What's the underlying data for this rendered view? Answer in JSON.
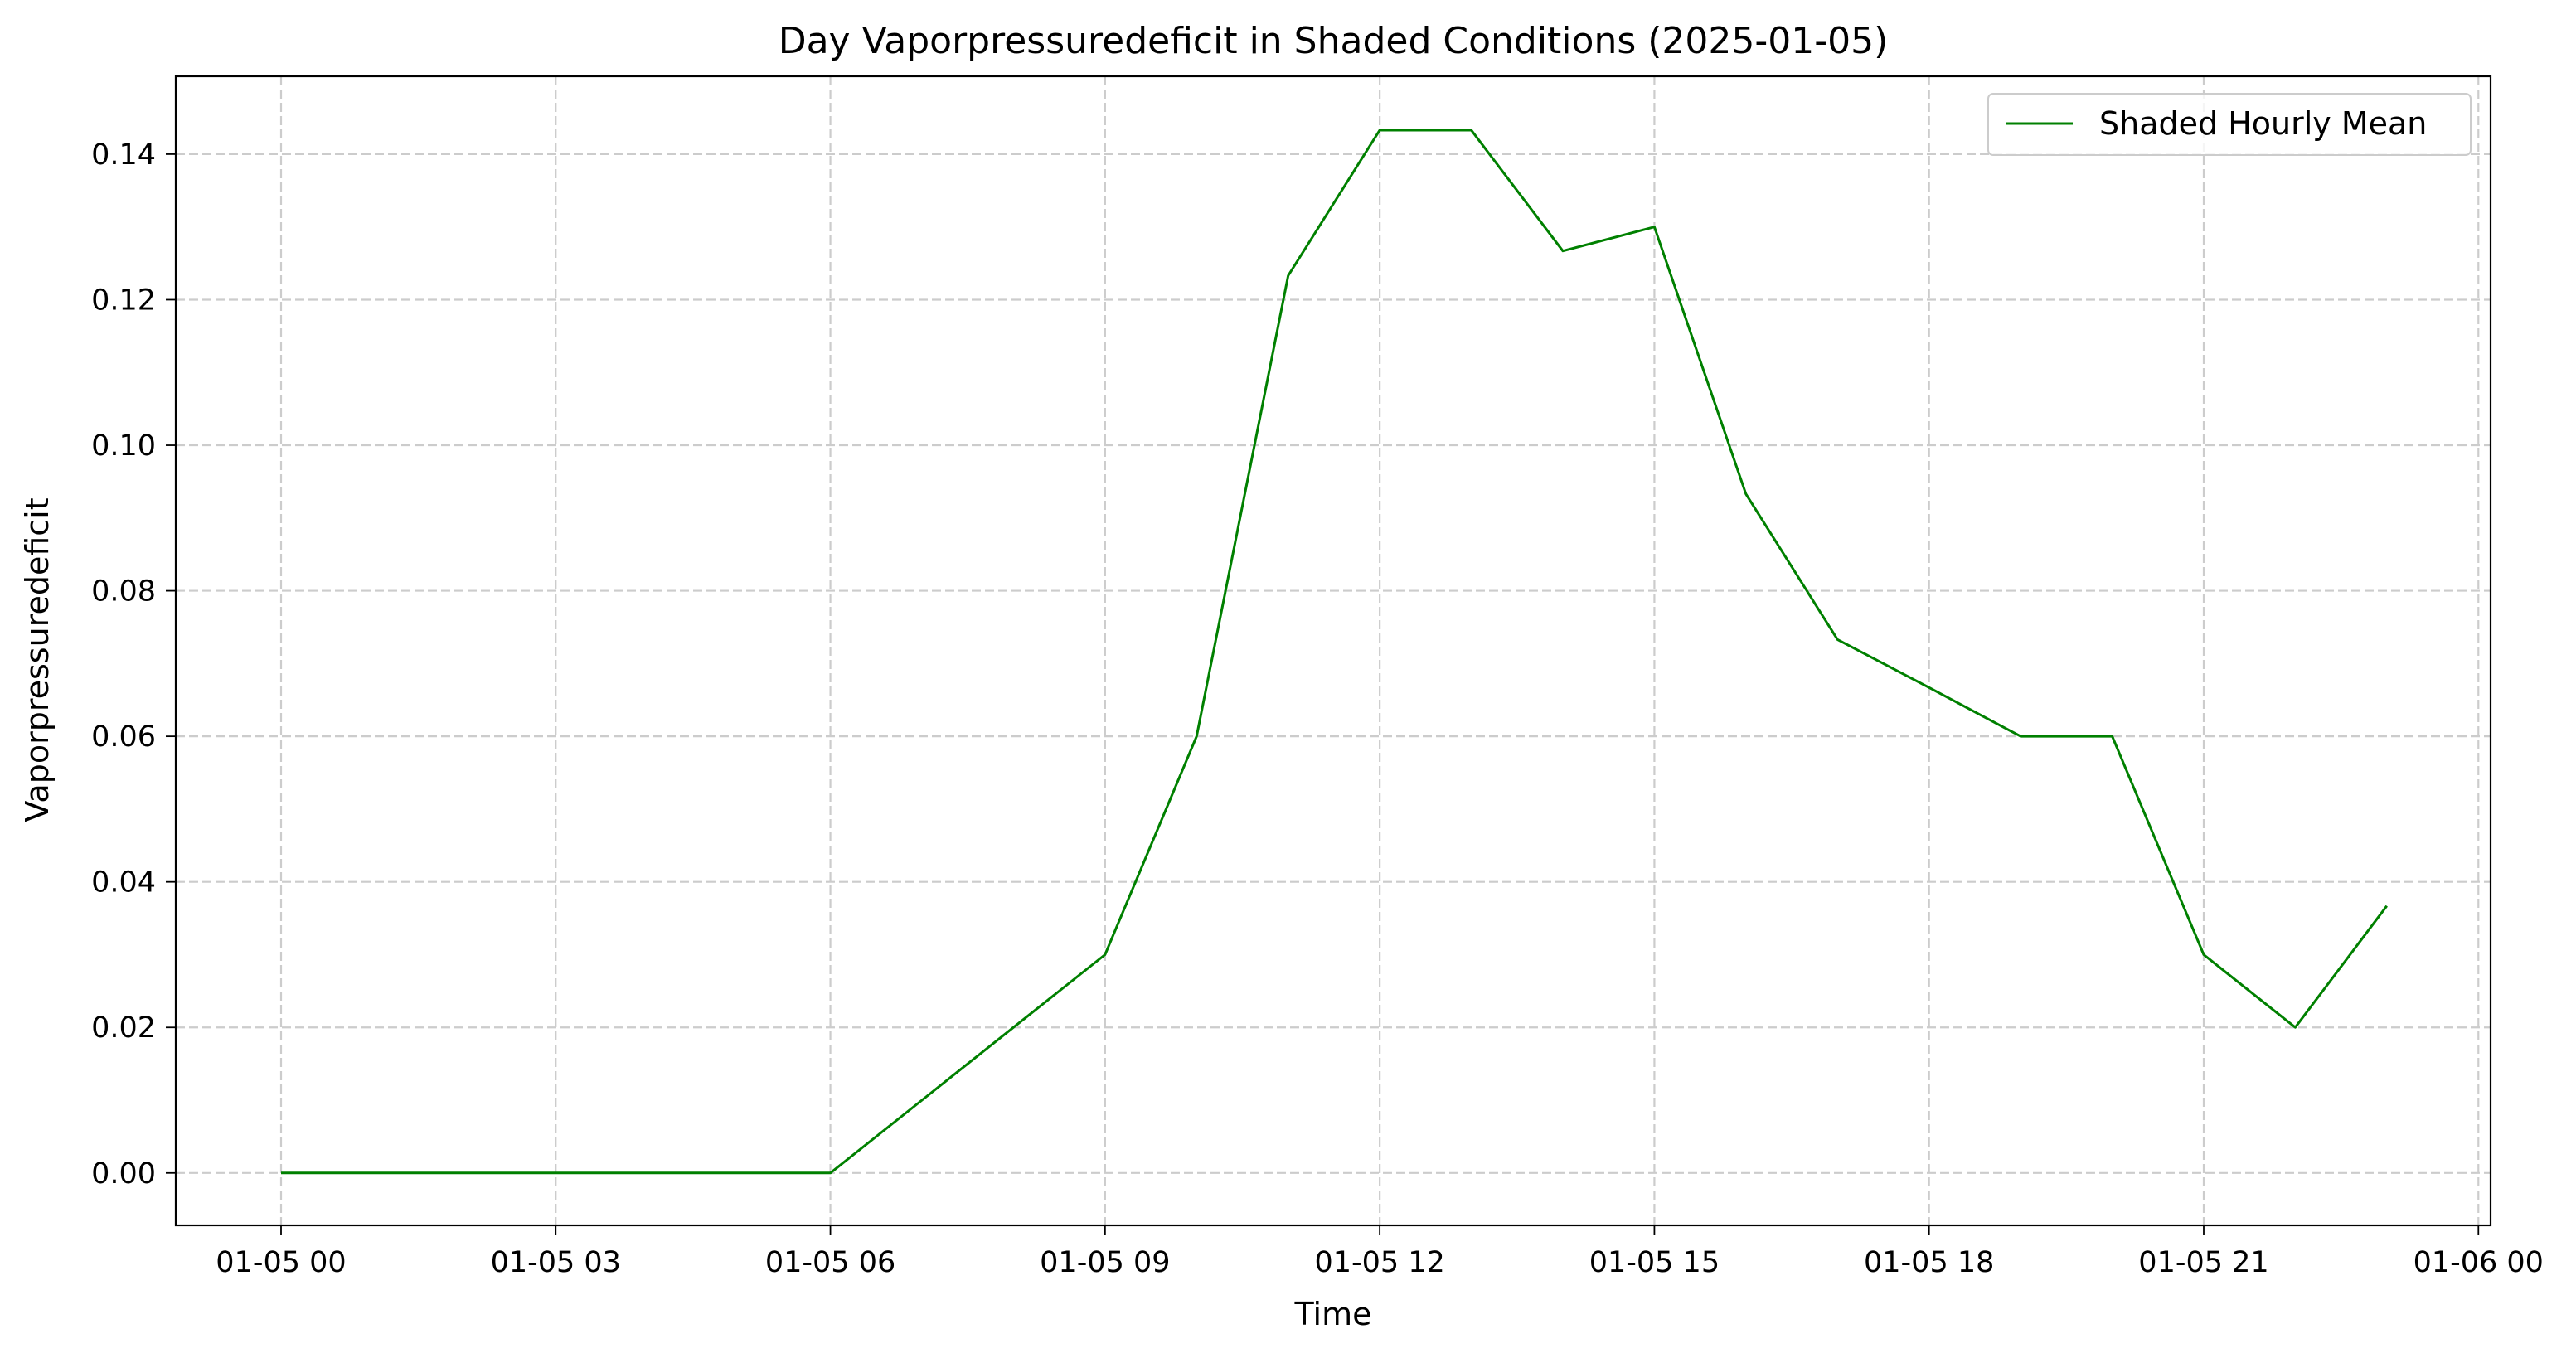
{
  "chart_data": {
    "type": "line",
    "title": "Day Vaporpressuredeficit in Shaded Conditions (2025-01-05)",
    "xlabel": "Time",
    "ylabel": "Vaporpressuredeficit",
    "x_ticks": [
      "01-05 00",
      "01-05 03",
      "01-05 06",
      "01-05 09",
      "01-05 12",
      "01-05 15",
      "01-05 18",
      "01-05 21",
      "01-06 00"
    ],
    "y_ticks": [
      "0.00",
      "0.02",
      "0.04",
      "0.06",
      "0.08",
      "0.10",
      "0.12",
      "0.14"
    ],
    "ylim": [
      -0.0072,
      0.1507
    ],
    "xlim": [
      "2025-01-04 22:51",
      "2025-01-06 00:08"
    ],
    "grid": true,
    "legend_position": "top-right",
    "series": [
      {
        "name": "Shaded Hourly Mean",
        "color": "#008000",
        "x": [
          "2025-01-05 00:00",
          "2025-01-05 01:00",
          "2025-01-05 02:00",
          "2025-01-05 03:00",
          "2025-01-05 04:00",
          "2025-01-05 05:00",
          "2025-01-05 06:00",
          "2025-01-05 07:00",
          "2025-01-05 08:00",
          "2025-01-05 09:00",
          "2025-01-05 10:00",
          "2025-01-05 11:00",
          "2025-01-05 12:00",
          "2025-01-05 13:00",
          "2025-01-05 14:00",
          "2025-01-05 15:00",
          "2025-01-05 16:00",
          "2025-01-05 17:00",
          "2025-01-05 18:00",
          "2025-01-05 19:00",
          "2025-01-05 20:00",
          "2025-01-05 21:00",
          "2025-01-05 22:00",
          "2025-01-05 23:00"
        ],
        "y": [
          0.0,
          0.0,
          0.0,
          0.0,
          0.0,
          0.0,
          0.0,
          0.01,
          0.02,
          0.03,
          0.06,
          0.1233,
          0.1433,
          0.1433,
          0.1267,
          0.13,
          0.0933,
          0.0733,
          0.0667,
          0.06,
          0.06,
          0.03,
          0.02,
          0.0367
        ]
      }
    ]
  }
}
